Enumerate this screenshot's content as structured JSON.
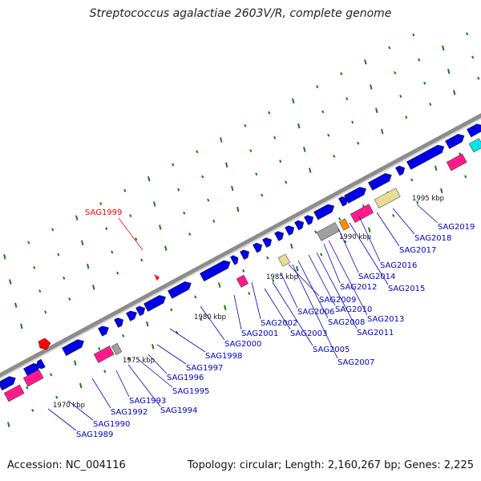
{
  "title": "Streptococcus agalactiae 2603V/R, complete genome",
  "footer": {
    "accession": "Accession: NC_004116",
    "summary": "Topology: circular; Length: 2,160,267 bp; Genes: 2,225"
  },
  "colors": {
    "backbone": "#8c8c8c",
    "gene_cds": "#0000e6",
    "gene_magenta": "#ff1a8c",
    "gene_gray": "#a0a0a0",
    "gene_khaki": "#e8dc96",
    "gene_orange": "#ff8c00",
    "gene_cyan": "#00e5e5",
    "highlight": "#ff0000",
    "label": "#0000cc",
    "label_highlight": "#ff0000",
    "ticks_major": "#1a7a1a",
    "ticks_minor": "#1a7a1a"
  },
  "scale_labels": [
    "1970 kbp",
    "1975 kbp",
    "1980 kbp",
    "1985 kbp",
    "1990 kbp",
    "1995 kbp"
  ],
  "highlighted_gene": "SAG1999",
  "gene_labels": [
    "SAG1989",
    "SAG1990",
    "SAG1992",
    "SAG1993",
    "SAG1994",
    "SAG1995",
    "SAG1996",
    "SAG1997",
    "SAG1998",
    "SAG2000",
    "SAG2001",
    "SAG2002",
    "SAG2003",
    "SAG2005",
    "SAG2006",
    "SAG2007",
    "SAG2008",
    "SAG2009",
    "SAG2010",
    "SAG2011",
    "SAG2012",
    "SAG2013",
    "SAG2014",
    "SAG2015",
    "SAG2016",
    "SAG2017",
    "SAG2018",
    "SAG2019"
  ]
}
